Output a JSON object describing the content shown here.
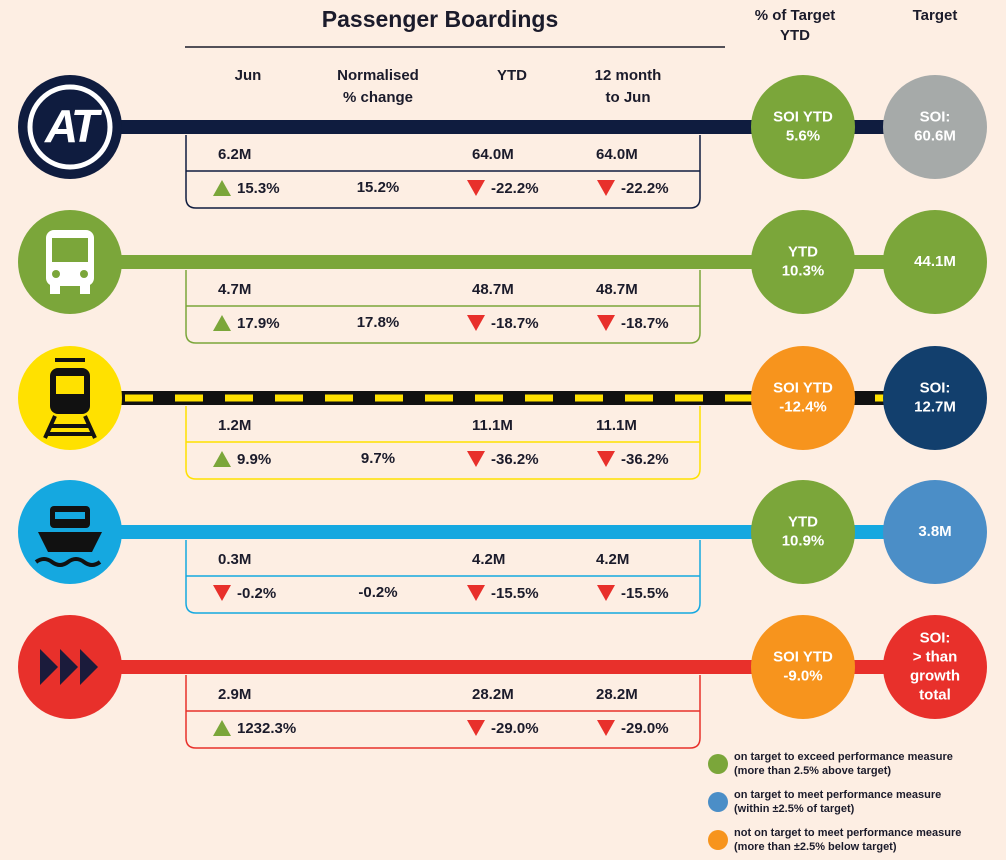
{
  "header": {
    "title": "Passenger Boardings",
    "pct_target": [
      "% of Target",
      "YTD"
    ],
    "target": "Target",
    "columns": [
      [
        "Jun"
      ],
      [
        "Normalised",
        "% change"
      ],
      [
        "YTD"
      ],
      [
        "12 month",
        "to Jun"
      ]
    ]
  },
  "rows": [
    {
      "logo": "AT",
      "color": "#0f1c3f",
      "jun": "6.2M",
      "jun_change": "15.3%",
      "normalised": "15.2%",
      "ytd": "64.0M",
      "ytd_change": "-22.2%",
      "twelve": "64.0M",
      "twelve_change": "-22.2%",
      "ytd_target": [
        "SOI YTD",
        "5.6%"
      ],
      "ytd_target_color": "#7ba63a",
      "target": [
        "SOI:",
        "60.6M"
      ],
      "target_color": "#a6aaa9"
    },
    {
      "color": "#7ba63a",
      "jun": "4.7M",
      "jun_change": "17.9%",
      "normalised": "17.8%",
      "ytd": "48.7M",
      "ytd_change": "-18.7%",
      "twelve": "48.7M",
      "twelve_change": "-18.7%",
      "ytd_target": [
        "YTD",
        "10.3%"
      ],
      "ytd_target_color": "#7ba63a",
      "target": [
        "44.1M"
      ],
      "target_color": "#7ba63a"
    },
    {
      "color": "#ffe100",
      "line_color": "#111111",
      "line_dash_color": "#ffe100",
      "jun": "1.2M",
      "jun_change": "9.9%",
      "normalised": "9.7%",
      "ytd": "11.1M",
      "ytd_change": "-36.2%",
      "twelve": "11.1M",
      "twelve_change": "-36.2%",
      "ytd_target": [
        "SOI YTD",
        "-12.4%"
      ],
      "ytd_target_color": "#f7941d",
      "target": [
        "SOI:",
        "12.7M"
      ],
      "target_color": "#123f6d"
    },
    {
      "color": "#15a8e0",
      "jun": "0.3M",
      "jun_change": "-0.2%",
      "normalised": "-0.2%",
      "ytd": "4.2M",
      "ytd_change": "-15.5%",
      "twelve": "4.2M",
      "twelve_change": "-15.5%",
      "ytd_target": [
        "YTD",
        "10.9%"
      ],
      "ytd_target_color": "#7ba63a",
      "target": [
        "3.8M"
      ],
      "target_color": "#4b8ec7"
    },
    {
      "color": "#e8302b",
      "jun": "2.9M",
      "jun_change": "1232.3%",
      "ytd": "28.2M",
      "ytd_change": "-29.0%",
      "twelve": "28.2M",
      "twelve_change": "-29.0%",
      "ytd_target": [
        "SOI YTD",
        "-9.0%"
      ],
      "ytd_target_color": "#f7941d",
      "target": [
        "SOI:",
        "> than",
        "growth",
        "total"
      ],
      "target_color": "#e8302b"
    }
  ],
  "legend": [
    {
      "color": "#7ba63a",
      "lines": [
        "on target to exceed performance measure",
        "(more than 2.5% above target)"
      ]
    },
    {
      "color": "#4b8ec7",
      "lines": [
        "on target to meet performance measure",
        "(within ±2.5% of target)"
      ]
    },
    {
      "color": "#f7941d",
      "lines": [
        "not on target to meet performance measure",
        "(more than ±2.5% below target)"
      ]
    }
  ]
}
